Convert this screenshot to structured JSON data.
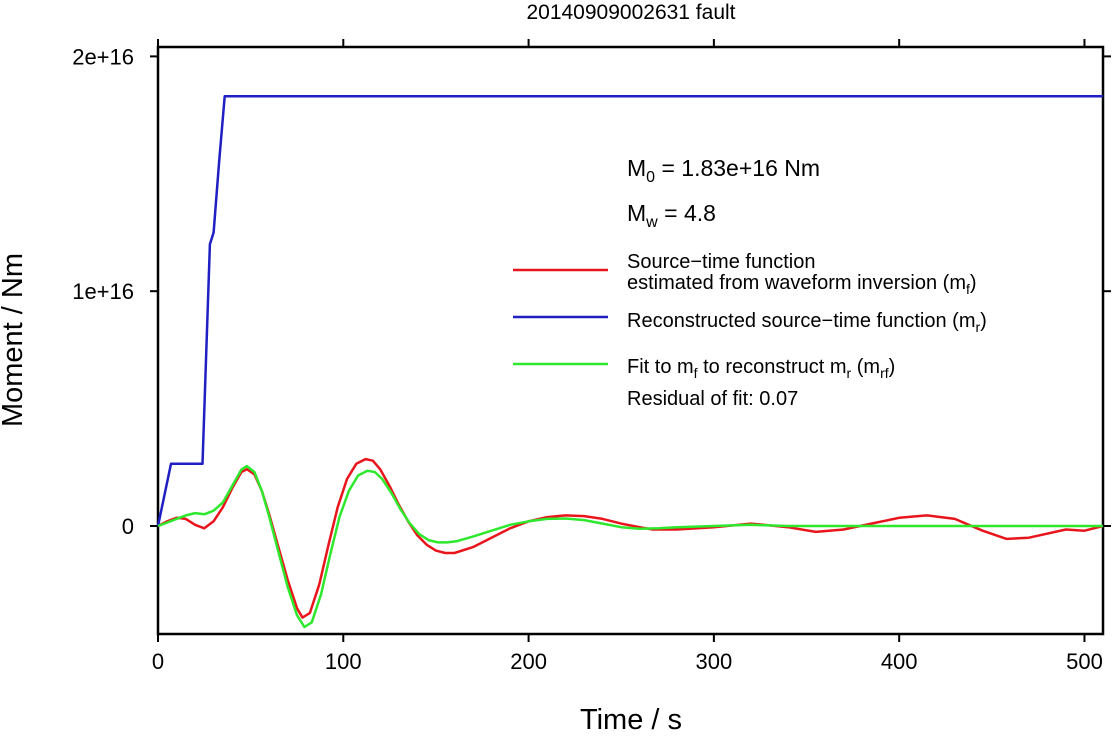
{
  "chart_data": {
    "type": "line",
    "title": "20140909002631 fault",
    "xlabel": "Time / s",
    "ylabel": "Moment / Nm",
    "xlim": [
      0,
      510
    ],
    "ylim": [
      -4600000000000000.0,
      2.04e+16
    ],
    "x_ticks": [
      0,
      100,
      200,
      300,
      400,
      500
    ],
    "x_tick_labels": [
      "0",
      "100",
      "200",
      "300",
      "400",
      "500"
    ],
    "y_ticks": [
      0,
      1e+16,
      2e+16
    ],
    "y_tick_labels": [
      "0",
      "1e+16",
      "2e+16"
    ],
    "grid": false,
    "legend_position": "right",
    "annotations": {
      "m0": {
        "main": "M",
        "sub": "0",
        "rest": " = 1.83e+16 Nm"
      },
      "mw": {
        "main": "M",
        "sub": "w",
        "rest": " = 4.8"
      },
      "residual": "Residual of fit: 0.07"
    },
    "legend": [
      {
        "color": "#e8161c",
        "lines": [
          [
            {
              "t": "Source−time function"
            }
          ],
          [
            {
              "t": "estimated from waveform inversion (m"
            },
            {
              "t": "f",
              "sub": true
            },
            {
              "t": ")"
            }
          ]
        ]
      },
      {
        "color": "#1f1fc4",
        "lines": [
          [
            {
              "t": "Reconstructed source−time function (m"
            },
            {
              "t": "r",
              "sub": true
            },
            {
              "t": ")"
            }
          ]
        ]
      },
      {
        "color": "#2ee82e",
        "lines": [
          [
            {
              "t": "Fit to m"
            },
            {
              "t": "f",
              "sub": true
            },
            {
              "t": " to reconstruct m"
            },
            {
              "t": "r",
              "sub": true
            },
            {
              "t": " (m"
            },
            {
              "t": "rf",
              "sub": true
            },
            {
              "t": ")"
            }
          ]
        ]
      }
    ],
    "series": [
      {
        "key": "mf",
        "color": "#e8161c",
        "x": [
          0,
          5,
          10,
          15,
          20,
          25,
          30,
          35,
          40,
          45,
          48,
          52,
          56,
          60,
          65,
          70,
          75,
          78,
          82,
          87,
          92,
          97,
          102,
          107,
          112,
          116,
          120,
          125,
          130,
          135,
          140,
          145,
          150,
          155,
          160,
          170,
          180,
          190,
          200,
          210,
          220,
          230,
          240,
          250,
          260,
          267,
          280,
          300,
          320,
          340,
          355,
          370,
          385,
          400,
          415,
          430,
          445,
          458,
          470,
          490,
          500,
          510
        ],
        "y": [
          0,
          200000000000000.0,
          350000000000000.0,
          300000000000000.0,
          50000000000000.0,
          -100000000000000.0,
          200000000000000.0,
          800000000000000.0,
          1600000000000000.0,
          2300000000000000.0,
          2420000000000000.0,
          2200000000000000.0,
          1500000000000000.0,
          500000000000000.0,
          -900000000000000.0,
          -2300000000000000.0,
          -3500000000000000.0,
          -3900000000000000.0,
          -3700000000000000.0,
          -2500000000000000.0,
          -800000000000000.0,
          800000000000000.0,
          2000000000000000.0,
          2650000000000000.0,
          2850000000000000.0,
          2780000000000000.0,
          2400000000000000.0,
          1700000000000000.0,
          900000000000000.0,
          200000000000000.0,
          -400000000000000.0,
          -800000000000000.0,
          -1050000000000000.0,
          -1150000000000000.0,
          -1150000000000000.0,
          -900000000000000.0,
          -500000000000000.0,
          -100000000000000.0,
          200000000000000.0,
          380000000000000.0,
          450000000000000.0,
          420000000000000.0,
          300000000000000.0,
          100000000000000.0,
          -50000000000000.0,
          -150000000000000.0,
          -150000000000000.0,
          -50000000000000.0,
          100000000000000.0,
          -50000000000000.0,
          -250000000000000.0,
          -150000000000000.0,
          100000000000000.0,
          350000000000000.0,
          450000000000000.0,
          300000000000000.0,
          -200000000000000.0,
          -550000000000000.0,
          -500000000000000.0,
          -150000000000000.0,
          -200000000000000.0,
          0
        ]
      },
      {
        "key": "mr",
        "color": "#1f1fc4",
        "x": [
          0,
          7,
          24,
          28,
          30,
          33,
          36,
          510
        ],
        "y": [
          0,
          2650000000000000.0,
          2650000000000000.0,
          1.2e+16,
          1.25e+16,
          1.55e+16,
          1.83e+16,
          1.83e+16
        ]
      },
      {
        "key": "mrf",
        "color": "#2ee82e",
        "x": [
          0,
          5,
          10,
          15,
          20,
          25,
          30,
          35,
          40,
          45,
          48,
          52,
          56,
          60,
          65,
          70,
          75,
          79,
          83,
          88,
          93,
          98,
          103,
          108,
          113,
          117,
          121,
          126,
          131,
          136,
          141,
          146,
          151,
          156,
          161,
          170,
          180,
          190,
          200,
          210,
          220,
          230,
          240,
          250,
          260,
          270,
          280,
          300,
          320,
          340,
          500,
          510
        ],
        "y": [
          0,
          150000000000000.0,
          300000000000000.0,
          450000000000000.0,
          550000000000000.0,
          500000000000000.0,
          650000000000000.0,
          1000000000000000.0,
          1700000000000000.0,
          2400000000000000.0,
          2550000000000000.0,
          2300000000000000.0,
          1500000000000000.0,
          400000000000000.0,
          -1100000000000000.0,
          -2600000000000000.0,
          -3800000000000000.0,
          -4300000000000000.0,
          -4100000000000000.0,
          -2900000000000000.0,
          -1200000000000000.0,
          400000000000000.0,
          1500000000000000.0,
          2150000000000000.0,
          2350000000000000.0,
          2300000000000000.0,
          2000000000000000.0,
          1400000000000000.0,
          700000000000000.0,
          100000000000000.0,
          -350000000000000.0,
          -600000000000000.0,
          -700000000000000.0,
          -700000000000000.0,
          -650000000000000.0,
          -450000000000000.0,
          -200000000000000.0,
          50000000000000.0,
          200000000000000.0,
          300000000000000.0,
          320000000000000.0,
          250000000000000.0,
          100000000000000.0,
          -50000000000000.0,
          -120000000000000.0,
          -100000000000000.0,
          -50000000000000.0,
          0,
          50000000000000.0,
          0,
          0,
          0
        ]
      }
    ]
  }
}
